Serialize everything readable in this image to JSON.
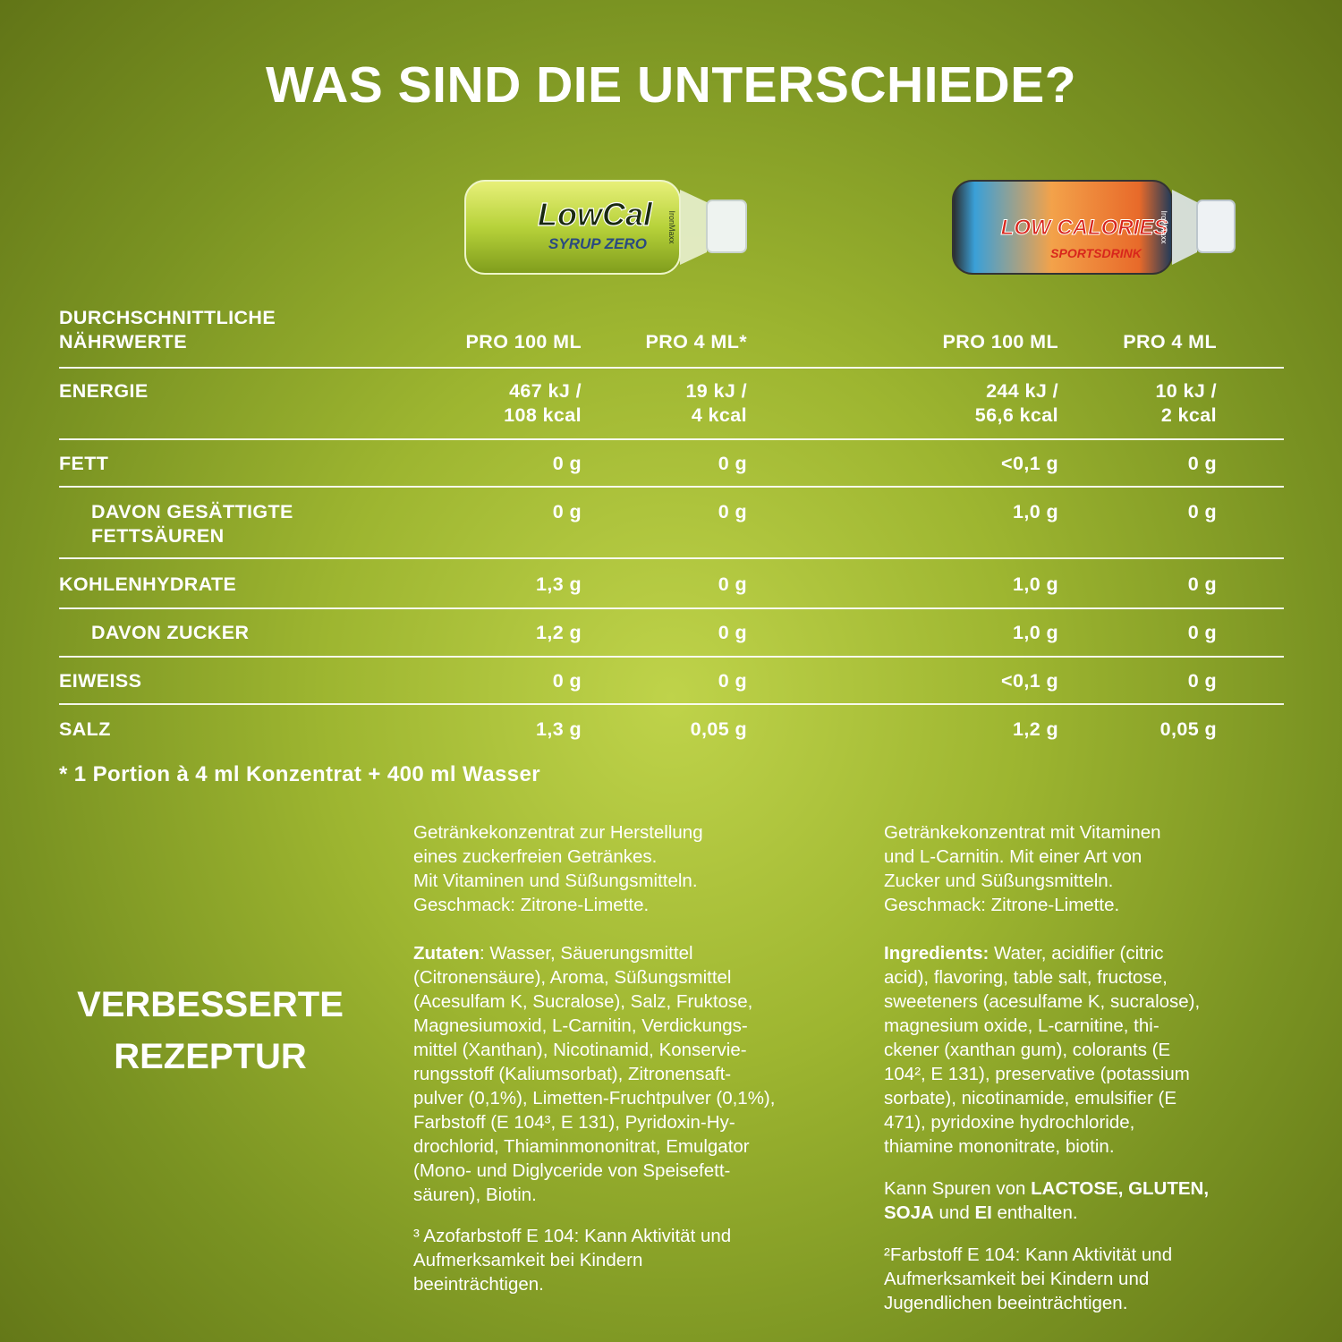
{
  "header": {
    "title": "WAS SIND DIE UNTERSCHIEDE?"
  },
  "products": [
    {
      "brand": "IronMaxx",
      "logo": "LowCal",
      "sub": "SYRUP ZERO"
    },
    {
      "brand": "IronMaxx",
      "logo": "LOW CALORIES",
      "sub": "SPORTSDRINK"
    }
  ],
  "table": {
    "header": [
      "DURCHSCHNITTLICHE\nNÄHRWERTE",
      "PRO 100 ML",
      "PRO 4 ML*",
      "PRO 100 ML",
      "PRO 4 ML"
    ],
    "rows": [
      [
        "ENERGIE",
        "467 kJ /\n108 kcal",
        "19 kJ /\n4 kcal",
        "244 kJ /\n56,6 kcal",
        "10 kJ /\n2 kcal"
      ],
      [
        "FETT",
        "0 g",
        "0 g",
        "<0,1 g",
        "0 g"
      ],
      [
        "DAVON GESÄTTIGTE\nFETTSÄUREN",
        "0 g",
        "0 g",
        "1,0 g",
        "0 g"
      ],
      [
        "KOHLENHYDRATE",
        "1,3 g",
        "0 g",
        "1,0 g",
        "0 g"
      ],
      [
        "DAVON ZUCKER",
        "1,2 g",
        "0 g",
        "1,0 g",
        "0 g"
      ],
      [
        "EIWEISS",
        "0 g",
        "0 g",
        "<0,1 g",
        "0 g"
      ],
      [
        "SALZ",
        "1,3 g",
        "0,05 g",
        "1,2 g",
        "0,05 g"
      ]
    ],
    "footnote": "* 1 Portion à 4 ml Konzentrat + 400 ml Wasser"
  },
  "side_heading": "VERBESSERTE\nREZEPTUR",
  "columns": [
    {
      "description": "Getränkekonzentrat zur Herstellung\neines zuckerfreien Getränkes.\nMit Vitaminen und Süßungsmitteln.\nGeschmack: Zitrone-Limette.",
      "ingredients_label": "Zutaten",
      "ingredients": ": Wasser, Säuerungsmittel\n(Citronensäure), Aroma, Süßungsmittel\n(Acesulfam K, Sucralose), Salz, Fruktose,\nMagnesiumoxid, L-Carnitin, Verdickungs-\nmittel (Xanthan), Nicotinamid, Konservie-\nrungsstoff (Kaliumsorbat), Zitronensaft-\npulver (0,1%), Limetten-Fruchtpulver (0,1%),\nFarbstoff (E 104³, E 131), Pyridoxin-Hy-\ndrochlorid, Thiaminmononitrat, Emulgator\n(Mono- und Diglyceride von Speisefett-\nsäuren), Biotin.",
      "note": "³ Azofarbstoff E 104: Kann Aktivität und\nAufmerksamkeit bei Kindern\nbeeinträchtigen."
    },
    {
      "description": "Getränkekonzentrat mit Vitaminen\nund L-Carnitin. Mit einer Art von\nZucker und Süßungsmitteln.\nGeschmack: Zitrone-Limette.",
      "ingredients_label": "Ingredients:",
      "ingredients": " Water, acidifier (citric\nacid), flavoring, table salt, fructose,\nsweeteners (acesulfame K, sucralose),\nmagnesium oxide, L-carnitine, thi-\nckener (xanthan gum), colorants (E\n104², E 131), preservative (potassium\nsorbate), nicotinamide, emulsifier (E\n471), pyridoxine hydrochloride,\nthiamine mononitrate, biotin.",
      "allergens": [
        "Kann Spuren von ",
        "LACTOSE, GLUTEN,\nSOJA",
        " und ",
        "EI",
        " enthalten."
      ],
      "note": "²Farbstoff E 104: Kann Aktivität und\nAufmerksamkeit bei Kindern und\nJugendlichen beeinträchtigen."
    }
  ]
}
